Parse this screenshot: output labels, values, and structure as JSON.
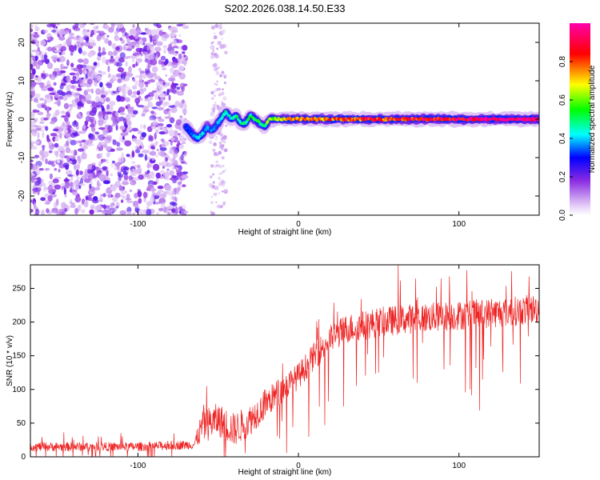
{
  "title": "S202.2026.038.14.50.E33",
  "chart_data": [
    {
      "type": "heatmap",
      "xlabel": "Height of straight line (km)",
      "ylabel": "Frequency (Hz)",
      "xlim": [
        -167,
        150
      ],
      "ylim": [
        -25,
        25
      ],
      "xticks": [
        -100,
        0,
        100
      ],
      "yticks": [
        20,
        10,
        0,
        -10,
        -20
      ],
      "colorbar": {
        "label": "Normalized spectral amplitude",
        "range": [
          0,
          1
        ],
        "ticks": [
          0.0,
          0.2,
          0.4,
          0.6,
          0.8
        ],
        "tick_labels": [
          "0.0",
          "0.2",
          "0.4",
          "0.6",
          "0.8"
        ],
        "colors": [
          "#ffffff",
          "#d8b8f0",
          "#8a2be2",
          "#0000ff",
          "#00ffff",
          "#00ff00",
          "#ffff00",
          "#ff0000",
          "#ff00aa"
        ]
      },
      "noise_region": {
        "x_range": [
          -167,
          -70
        ],
        "description_value": 0.35
      },
      "ridge": {
        "x": [
          -70,
          -66,
          -63,
          -60,
          -57,
          -54,
          -50,
          -47,
          -45,
          -42,
          -39,
          -36,
          -33,
          -30,
          -27,
          -24,
          -21,
          -18,
          -15,
          -10,
          0,
          30,
          60,
          90,
          120,
          150
        ],
        "freq": [
          -2,
          -4,
          -5,
          -4,
          -2,
          -3,
          -1,
          1,
          2,
          0,
          1,
          -1,
          -1,
          1,
          0,
          -1,
          -2,
          0,
          0,
          0,
          0,
          0,
          0,
          0,
          0,
          0
        ],
        "amp": [
          0.3,
          0.35,
          0.4,
          0.4,
          0.35,
          0.35,
          0.4,
          0.45,
          0.45,
          0.45,
          0.5,
          0.5,
          0.5,
          0.5,
          0.5,
          0.5,
          0.55,
          0.6,
          0.65,
          0.7,
          0.75,
          0.8,
          0.85,
          0.9,
          0.95,
          1.0
        ]
      }
    },
    {
      "type": "line",
      "xlabel": "Height of straight line (km)",
      "ylabel": "SNR (10 * v/v)",
      "xlim": [
        -167,
        150
      ],
      "ylim": [
        0,
        285
      ],
      "xticks": [
        -100,
        0,
        100
      ],
      "yticks": [
        0,
        50,
        100,
        150,
        200,
        250
      ],
      "color": "#ee2222",
      "trend": {
        "x": [
          -167,
          -100,
          -65,
          -60,
          -50,
          -40,
          -30,
          -20,
          -10,
          0,
          10,
          20,
          30,
          50,
          70,
          100,
          130,
          150
        ],
        "y": [
          15,
          15,
          18,
          45,
          55,
          40,
          55,
          80,
          100,
          120,
          150,
          175,
          190,
          200,
          205,
          210,
          215,
          220
        ]
      },
      "noise_amplitude": {
        "x": [
          -167,
          -65,
          -60,
          -40,
          0,
          30,
          150
        ],
        "y": [
          12,
          12,
          45,
          45,
          35,
          40,
          40
        ]
      }
    }
  ]
}
